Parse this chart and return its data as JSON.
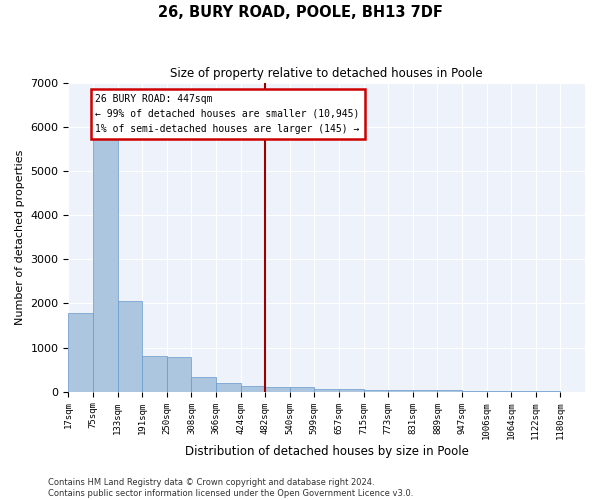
{
  "title": "26, BURY ROAD, POOLE, BH13 7DF",
  "subtitle": "Size of property relative to detached houses in Poole",
  "xlabel": "Distribution of detached houses by size in Poole",
  "ylabel": "Number of detached properties",
  "bar_color": "#adc6e0",
  "bar_edge_color": "#6699cc",
  "background_color": "#eef2fb",
  "grid_color": "#ffffff",
  "vline_color": "#990000",
  "annotation_text": "26 BURY ROAD: 447sqm\n← 99% of detached houses are smaller (10,945)\n1% of semi-detached houses are larger (145) →",
  "annotation_box_color": "#cc0000",
  "bar_heights": [
    1780,
    5780,
    2060,
    800,
    790,
    340,
    195,
    135,
    115,
    95,
    70,
    55,
    45,
    38,
    32,
    28,
    22,
    18,
    14,
    10
  ],
  "tick_labels": [
    "17sqm",
    "75sqm",
    "133sqm",
    "191sqm",
    "250sqm",
    "308sqm",
    "366sqm",
    "424sqm",
    "482sqm",
    "540sqm",
    "599sqm",
    "657sqm",
    "715sqm",
    "773sqm",
    "831sqm",
    "889sqm",
    "947sqm",
    "1006sqm",
    "1064sqm",
    "1122sqm",
    "1180sqm"
  ],
  "ylim": [
    0,
    7000
  ],
  "yticks": [
    0,
    1000,
    2000,
    3000,
    4000,
    5000,
    6000,
    7000
  ],
  "footnote": "Contains HM Land Registry data © Crown copyright and database right 2024.\nContains public sector information licensed under the Open Government Licence v3.0.",
  "fig_width": 6.0,
  "fig_height": 5.0,
  "dpi": 100
}
